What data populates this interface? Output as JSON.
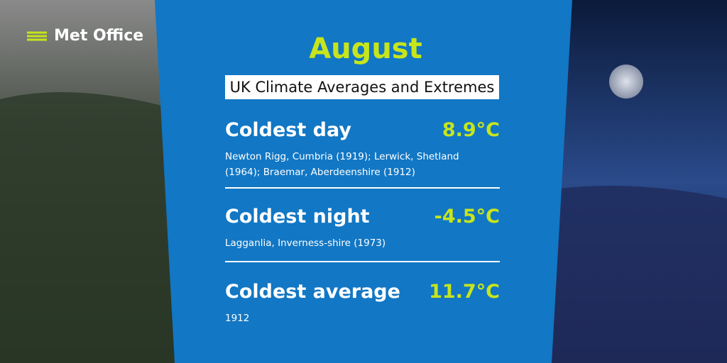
{
  "brand": "Met Office",
  "header": {
    "title": "August",
    "subtitle": "UK Climate Averages and Extremes"
  },
  "records": [
    {
      "label": "Coldest day",
      "value": "8.9°C",
      "detail": "Newton Rigg, Cumbria (1919); Lerwick, Shetland (1964); Braemar, Aberdeenshire (1912)"
    },
    {
      "label": "Coldest night",
      "value": "-4.5°C",
      "detail": "Lagganlia, Inverness-shire (1973)"
    },
    {
      "label": "Coldest average",
      "value": "11.7°C",
      "detail": "1912"
    }
  ]
}
